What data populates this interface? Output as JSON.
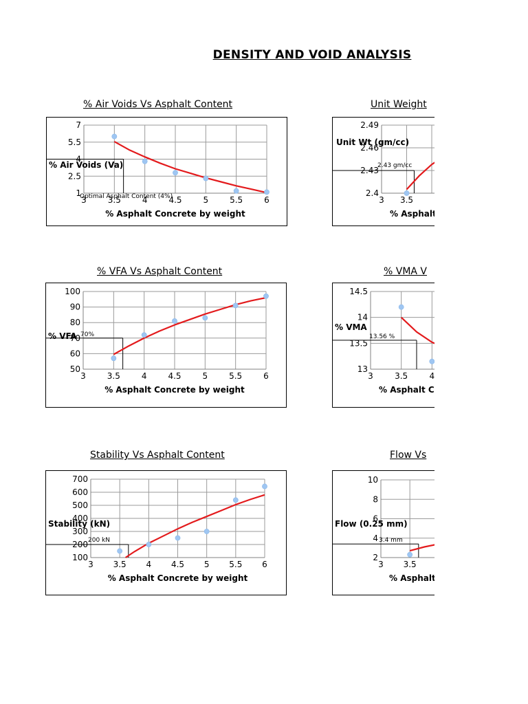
{
  "page": {
    "title": "DENSITY AND VOID ANALYSIS"
  },
  "chart_data": [
    {
      "id": "air-voids",
      "type": "scatter",
      "title": "% Air Voids Vs Asphalt Content",
      "xlabel": "% Asphalt Concrete by weight",
      "ylabel": "% Air Voids (Va)",
      "xlim": [
        3,
        6
      ],
      "ylim": [
        1,
        7
      ],
      "xticks": [
        3,
        3.5,
        4,
        4.5,
        5,
        5.5,
        6
      ],
      "yticks": [
        1,
        2.5,
        4,
        5.5,
        7
      ],
      "grid": true,
      "points": {
        "x": [
          3.5,
          4,
          4.5,
          5,
          5.5,
          6
        ],
        "y": [
          6.0,
          3.8,
          2.8,
          2.3,
          1.2,
          1.1
        ]
      },
      "trend": {
        "x": [
          3.5,
          3.75,
          4,
          4.25,
          4.5,
          4.75,
          5,
          5.25,
          5.5,
          5.75,
          6
        ],
        "y": [
          5.55,
          4.8,
          4.2,
          3.65,
          3.15,
          2.75,
          2.35,
          2.0,
          1.65,
          1.35,
          1.05
        ]
      },
      "marker": {
        "x": 3.65,
        "y": 4,
        "label": "Optimal Asphalt Content (4%)"
      }
    },
    {
      "id": "unit-weight",
      "type": "scatter",
      "title": "Unit Weight",
      "xlabel": "% Asphalt C",
      "ylabel": "Unit Wt (gm/cc)",
      "xlim": [
        3,
        6
      ],
      "ylim": [
        2.4,
        2.49
      ],
      "xticks": [
        3,
        3.5
      ],
      "yticks": [
        2.4,
        2.43,
        2.46,
        2.49
      ],
      "grid": true,
      "points": {
        "x": [
          3.5
        ],
        "y": [
          2.4
        ]
      },
      "trend": {
        "x": [
          3.5,
          3.75,
          4,
          4.5
        ],
        "y": [
          2.405,
          2.423,
          2.438,
          2.46
        ]
      },
      "marker": {
        "x": 3.65,
        "y": 2.43,
        "label": "2.43 gm/cc"
      }
    },
    {
      "id": "vfa",
      "type": "scatter",
      "title": "% VFA Vs Asphalt Content",
      "xlabel": "% Asphalt Concrete by weight",
      "ylabel": "% VFA",
      "xlim": [
        3,
        6
      ],
      "ylim": [
        50,
        100
      ],
      "xticks": [
        3,
        3.5,
        4,
        4.5,
        5,
        5.5,
        6
      ],
      "yticks": [
        50,
        60,
        70,
        80,
        90,
        100
      ],
      "grid": true,
      "points": {
        "x": [
          3.5,
          4,
          4.5,
          5,
          5.5,
          6
        ],
        "y": [
          57,
          72,
          81,
          83,
          91,
          97
        ]
      },
      "trend": {
        "x": [
          3.5,
          3.75,
          4,
          4.25,
          4.5,
          4.75,
          5,
          5.25,
          5.5,
          5.75,
          6
        ],
        "y": [
          59.5,
          65,
          70,
          74.5,
          78.5,
          82,
          85.5,
          88.5,
          91.5,
          94,
          96
        ]
      },
      "marker": {
        "x": 3.65,
        "y": 70,
        "label": "70%"
      }
    },
    {
      "id": "vma",
      "type": "scatter",
      "title": "% VMA V",
      "xlabel": "% Asphalt Co",
      "ylabel": "% VMA",
      "xlim": [
        3,
        6
      ],
      "ylim": [
        13,
        14.5
      ],
      "xticks": [
        3,
        3.5,
        4
      ],
      "yticks": [
        13,
        13.5,
        14,
        14.5
      ],
      "grid": true,
      "points": {
        "x": [
          3.5,
          4
        ],
        "y": [
          14.2,
          13.15
        ]
      },
      "trend": {
        "x": [
          3.5,
          3.75,
          4,
          4.25,
          4.5
        ],
        "y": [
          14.0,
          13.72,
          13.52,
          13.4,
          13.35
        ]
      },
      "marker": {
        "x": 3.75,
        "y": 13.56,
        "label": "13.56 %"
      }
    },
    {
      "id": "stability",
      "type": "scatter",
      "title": "Stability Vs Asphalt Content",
      "xlabel": "% Asphalt Concrete by weight",
      "ylabel": "Stability (kN)",
      "xlim": [
        3,
        6
      ],
      "ylim": [
        100,
        700
      ],
      "xticks": [
        3,
        3.5,
        4,
        4.5,
        5,
        5.5,
        6
      ],
      "yticks": [
        100,
        200,
        300,
        400,
        500,
        600,
        700
      ],
      "grid": true,
      "points": {
        "x": [
          3.5,
          4,
          4.5,
          5,
          5.5,
          6
        ],
        "y": [
          150,
          200,
          250,
          300,
          540,
          645
        ]
      },
      "trend": {
        "x": [
          3.6,
          3.75,
          4,
          4.25,
          4.5,
          4.75,
          5,
          5.25,
          5.5,
          5.75,
          6
        ],
        "y": [
          100,
          145,
          210,
          265,
          320,
          370,
          415,
          460,
          505,
          545,
          580
        ]
      },
      "marker": {
        "x": 3.65,
        "y": 200,
        "label": "200 kN"
      }
    },
    {
      "id": "flow",
      "type": "scatter",
      "title": "Flow Vs",
      "xlabel": "% Asphalt C",
      "ylabel": "Flow (0.25 mm)",
      "xlim": [
        3,
        6
      ],
      "ylim": [
        2,
        10
      ],
      "xticks": [
        3,
        3.5
      ],
      "yticks": [
        2,
        4,
        6,
        8,
        10
      ],
      "grid": true,
      "points": {
        "x": [
          3.5
        ],
        "y": [
          2.3
        ]
      },
      "trend": {
        "x": [
          3.5,
          3.75,
          4,
          4.5
        ],
        "y": [
          2.7,
          3.1,
          3.4,
          3.9
        ]
      },
      "marker": {
        "x": 3.65,
        "y": 3.4,
        "label": "3.4 mm"
      }
    }
  ]
}
